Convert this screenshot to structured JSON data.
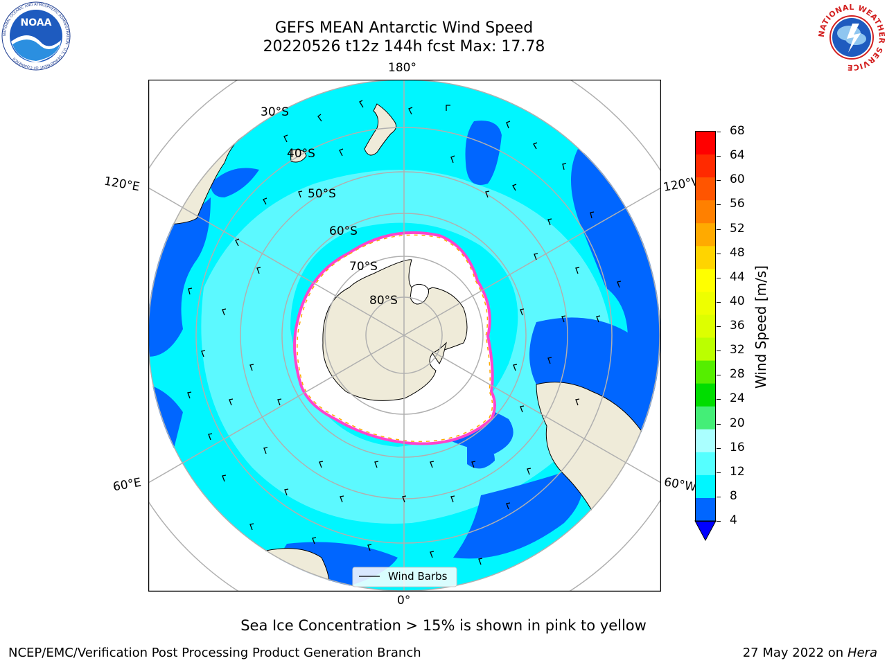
{
  "header": {
    "title_line1": "GEFS MEAN Antarctic Wind Speed",
    "title_line2": "20220526 t12z 144h fcst   Max: 17.78"
  },
  "logos": {
    "left_name": "NOAA",
    "left_ring_text": "NATIONAL OCEANIC AND ATMOSPHERIC ADMINISTRATION · U.S. DEPARTMENT OF COMMERCE",
    "right_ring_text": "NATIONAL WEATHER SERVICE"
  },
  "map": {
    "longitude_labels": [
      "180°",
      "120°E",
      "120°W",
      "60°E",
      "60°W",
      "0°"
    ],
    "latitude_labels": [
      "30°S",
      "40°S",
      "50°S",
      "60°S",
      "70°S",
      "80°S"
    ],
    "legend_label": "Wind Barbs",
    "colors": {
      "land": "#efebd9",
      "ocean_low": "#0055ff",
      "ocean_mid": "#00f6ff",
      "ocean_high": "#5cf9ff",
      "ice_edge": "#ff44cc"
    }
  },
  "colorbar": {
    "label": "Wind Speed [m/s]",
    "ticks": [
      "68",
      "64",
      "60",
      "56",
      "52",
      "48",
      "44",
      "40",
      "36",
      "32",
      "28",
      "24",
      "20",
      "16",
      "12",
      "8",
      "4"
    ],
    "bins": [
      "#ff0000",
      "#ff2a00",
      "#ff5500",
      "#ff8000",
      "#ffaa00",
      "#ffd400",
      "#ffff00",
      "#eeff00",
      "#ddff00",
      "#bbff00",
      "#55ee00",
      "#00dd00",
      "#44ee77",
      "#aaffff",
      "#55ffff",
      "#00f6ff",
      "#0066ff"
    ],
    "under_color": "#0000ff"
  },
  "caption": "Sea Ice Concentration > 15% is shown in pink to yellow",
  "footer": {
    "left": "NCEP/EMC/Verification Post Processing Product Generation Branch",
    "right_prefix": "27 May 2022 on",
    "right_italic": "Hera"
  }
}
